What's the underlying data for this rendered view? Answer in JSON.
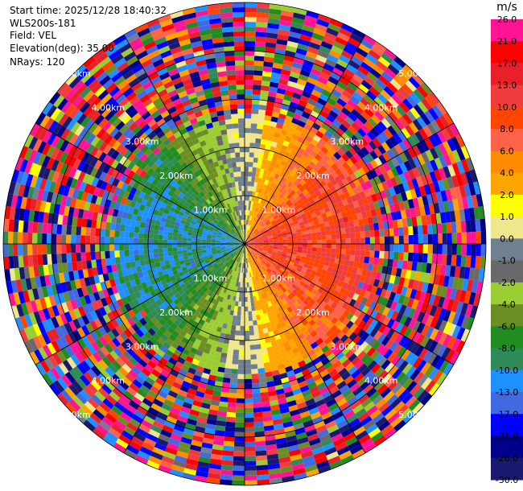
{
  "header": {
    "start_time": "Start time: 2025/12/28 18:40:32",
    "instrument": "WLS200s-181",
    "field": "Field: VEL",
    "elevation": "Elevation(deg): 35.00",
    "nrays": "NRays: 120"
  },
  "chart_data": {
    "type": "heatmap",
    "projection": "polar-ppi",
    "field": "VEL",
    "units": "m/s",
    "nrays": 120,
    "max_range_km": 5.0,
    "range_rings_km": [
      1.0,
      2.0,
      3.0,
      4.0,
      5.0
    ],
    "ring_labels": [
      "1.00km",
      "2.00km",
      "3.00km",
      "4.00km",
      "5.00km"
    ],
    "radial_lines_deg": [
      0,
      30,
      60,
      90,
      120,
      150,
      180,
      210,
      240,
      270,
      300,
      330
    ],
    "colorbar": {
      "label": "m/s",
      "ticks": [
        "26.0",
        "21.0",
        "17.0",
        "13.0",
        "10.0",
        "8.0",
        "6.0",
        "4.0",
        "2.0",
        "1.0",
        "0.0",
        "-1.0",
        "-2.0",
        "-4.0",
        "-6.0",
        "-8.0",
        "-10.0",
        "-13.0",
        "-17.0",
        "-21.0",
        "-26.0",
        "-30.0"
      ],
      "colors": [
        "#ff1493",
        "#ff0000",
        "#e8202a",
        "#f03c3c",
        "#ff4500",
        "#ff6347",
        "#ff8c00",
        "#ffa500",
        "#ffff00",
        "#f0e68c",
        "#708090",
        "#696969",
        "#9acd32",
        "#6b8e23",
        "#228b22",
        "#2e8b57",
        "#1e90ff",
        "#4169e1",
        "#0000ff",
        "#00008b",
        "#191970"
      ]
    },
    "pattern": {
      "near_field_max_km": 2.8,
      "positive_sector_center_deg": 90,
      "negative_sector_center_deg": 270,
      "peak_velocity_ms": 12.0,
      "far_field": "noise"
    }
  }
}
